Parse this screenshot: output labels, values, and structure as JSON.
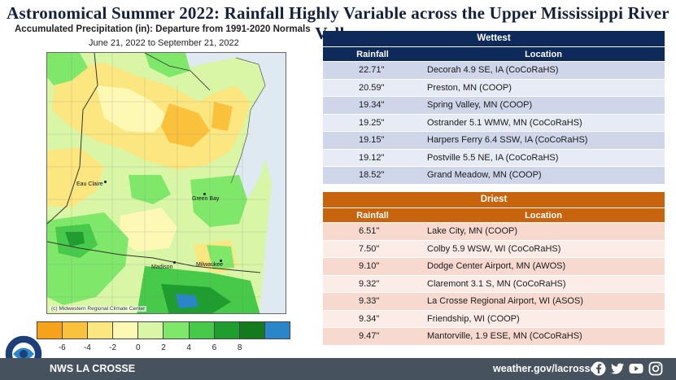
{
  "title": "Astronomical Summer 2022:  Rainfall Highly Variable across the Upper Mississippi River Valley",
  "map": {
    "heading": "Accumulated Precipitation (in): Departure from 1991-2020 Normals",
    "dates": "June 21, 2022 to September 21, 2022",
    "credit": "(c) Midwestern Regional Climate Center",
    "cities": [
      "Eau Claire",
      "Green Bay",
      "Madison",
      "Milwaukee"
    ],
    "legend_colors": [
      "#f7a21b",
      "#f9c13c",
      "#fce680",
      "#fdf8b3",
      "#d9f5a6",
      "#7fe86a",
      "#47c94a",
      "#1f9e2f",
      "#137a1d",
      "#2a86c9"
    ],
    "legend_ticks": [
      "-6",
      "-4",
      "-2",
      "0",
      "2",
      "4",
      "6",
      "8"
    ]
  },
  "wettest": {
    "heading": "Wettest",
    "col_rainfall": "Rainfall",
    "col_location": "Location",
    "rows": [
      {
        "rain": "22.71\"",
        "loc": "Decorah 4.9 SE, IA (CoCoRaHS)"
      },
      {
        "rain": "20.59\"",
        "loc": "Preston, MN (COOP)"
      },
      {
        "rain": "19.34\"",
        "loc": "Spring Valley, MN (COOP)"
      },
      {
        "rain": "19.25\"",
        "loc": "Ostrander 5.1 WMW, MN (CoCoRaHS)"
      },
      {
        "rain": "19.15\"",
        "loc": "Harpers Ferry 6.4 SSW, IA (CoCoRaHS)"
      },
      {
        "rain": "19.12\"",
        "loc": "Postville 5.5 NE, IA (CoCoRaHS)"
      },
      {
        "rain": "18.52\"",
        "loc": "Grand Meadow, MN (COOP)"
      }
    ]
  },
  "driest": {
    "heading": "Driest",
    "col_rainfall": "Rainfall",
    "col_location": "Location",
    "rows": [
      {
        "rain": "6.51\"",
        "loc": "Lake City, MN (COOP)"
      },
      {
        "rain": "7.50\"",
        "loc": "Colby 5.9 WSW, WI (CoCoRaHS)"
      },
      {
        "rain": "9.10\"",
        "loc": "Dodge Center Airport, MN (AWOS)"
      },
      {
        "rain": "9.32\"",
        "loc": "Claremont 3.1 S, MN (CoCoRaHS)"
      },
      {
        "rain": "9.33\"",
        "loc": "La Crosse Regional Airport, WI (ASOS)"
      },
      {
        "rain": "9.34\"",
        "loc": "Friendship, WI (COOP)"
      },
      {
        "rain": "9.47\"",
        "loc": "Mantorville, 1.9 ESE, MN (CoCoRaHS)"
      }
    ]
  },
  "footer": {
    "org": "NWS LA CROSSE",
    "url": "weather.gov/lacrosse",
    "social": [
      "facebook-icon",
      "twitter-icon",
      "youtube-icon",
      "instagram-icon"
    ]
  },
  "logo": {
    "text": "NATIONAL WEATHER SERVICE LA CROSSE, WI"
  }
}
